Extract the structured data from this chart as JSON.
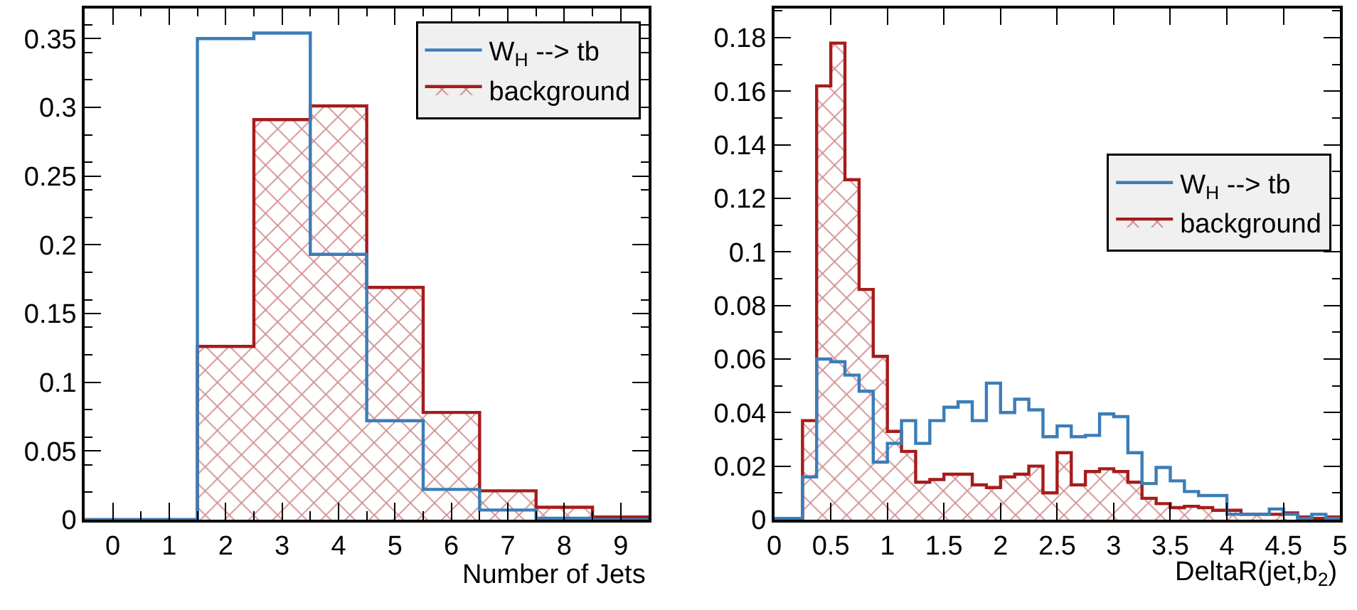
{
  "chart_data": [
    {
      "type": "histogram",
      "xlabel": "Number of Jets",
      "bins": [
        -0.5,
        0.5,
        1.5,
        2.5,
        3.5,
        4.5,
        5.5,
        6.5,
        7.5,
        8.5,
        9.5
      ],
      "series": [
        {
          "name": "W$_{H}$ --> tb",
          "color": "#3b7db8",
          "values": [
            0,
            0,
            0.35,
            0.354,
            0.193,
            0.072,
            0.022,
            0.007,
            0.001,
            0
          ]
        },
        {
          "name": "background",
          "color": "#a51c1c",
          "values": [
            0,
            0,
            0.126,
            0.291,
            0.301,
            0.169,
            0.078,
            0.021,
            0.009,
            0.002
          ]
        }
      ],
      "xlim": [
        -0.5,
        9.5
      ],
      "xticks": [
        0,
        1,
        2,
        3,
        4,
        5,
        6,
        7,
        8,
        9
      ],
      "ylim": [
        0,
        0.372
      ],
      "yticks": [
        0,
        0.05,
        0.1,
        0.15,
        0.2,
        0.25,
        0.3,
        0.35
      ],
      "legend": "top right"
    },
    {
      "type": "histogram",
      "xlabel": "DeltaR(jet,b$_{2}$)",
      "bins": [
        0,
        0.125,
        0.25,
        0.375,
        0.5,
        0.625,
        0.75,
        0.875,
        1.0,
        1.125,
        1.25,
        1.375,
        1.5,
        1.625,
        1.75,
        1.875,
        2.0,
        2.125,
        2.25,
        2.375,
        2.5,
        2.625,
        2.75,
        2.875,
        3.0,
        3.125,
        3.25,
        3.375,
        3.5,
        3.625,
        3.75,
        3.875,
        4.0,
        4.125,
        4.25,
        4.375,
        4.5,
        4.625,
        4.75,
        4.875,
        5.0
      ],
      "series": [
        {
          "name": "W$_{H}$ --> tb",
          "color": "#3b7db8",
          "values": [
            0.0005,
            0.0005,
            0.016,
            0.06,
            0.059,
            0.054,
            0.048,
            0.0215,
            0.0285,
            0.037,
            0.0285,
            0.037,
            0.042,
            0.044,
            0.037,
            0.051,
            0.04,
            0.045,
            0.041,
            0.031,
            0.035,
            0.031,
            0.0315,
            0.0395,
            0.0385,
            0.025,
            0.0135,
            0.0195,
            0.0145,
            0.0105,
            0.009,
            0.009,
            0.002,
            0.002,
            0.002,
            0.004,
            0.002,
            0.0005,
            0.002,
            0.0005
          ]
        },
        {
          "name": "background",
          "color": "#a51c1c",
          "values": [
            0,
            0,
            0.037,
            0.162,
            0.178,
            0.127,
            0.086,
            0.061,
            0.033,
            0.0255,
            0.014,
            0.015,
            0.017,
            0.017,
            0.013,
            0.012,
            0.016,
            0.017,
            0.02,
            0.01,
            0.025,
            0.013,
            0.018,
            0.019,
            0.018,
            0.014,
            0.008,
            0.006,
            0.0045,
            0.005,
            0.0045,
            0.0035,
            0.0035,
            0.002,
            0.002,
            0.002,
            0.0025,
            0.001,
            0.0005,
            0.001
          ]
        }
      ],
      "xlim": [
        0,
        5
      ],
      "xticks": [
        0,
        0.5,
        1,
        1.5,
        2,
        2.5,
        3,
        3.5,
        4,
        4.5,
        5
      ],
      "ylim": [
        0,
        0.191
      ],
      "yticks": [
        0,
        0.02,
        0.04,
        0.06,
        0.08,
        0.1,
        0.12,
        0.14,
        0.16,
        0.18
      ],
      "legend": "right"
    }
  ]
}
